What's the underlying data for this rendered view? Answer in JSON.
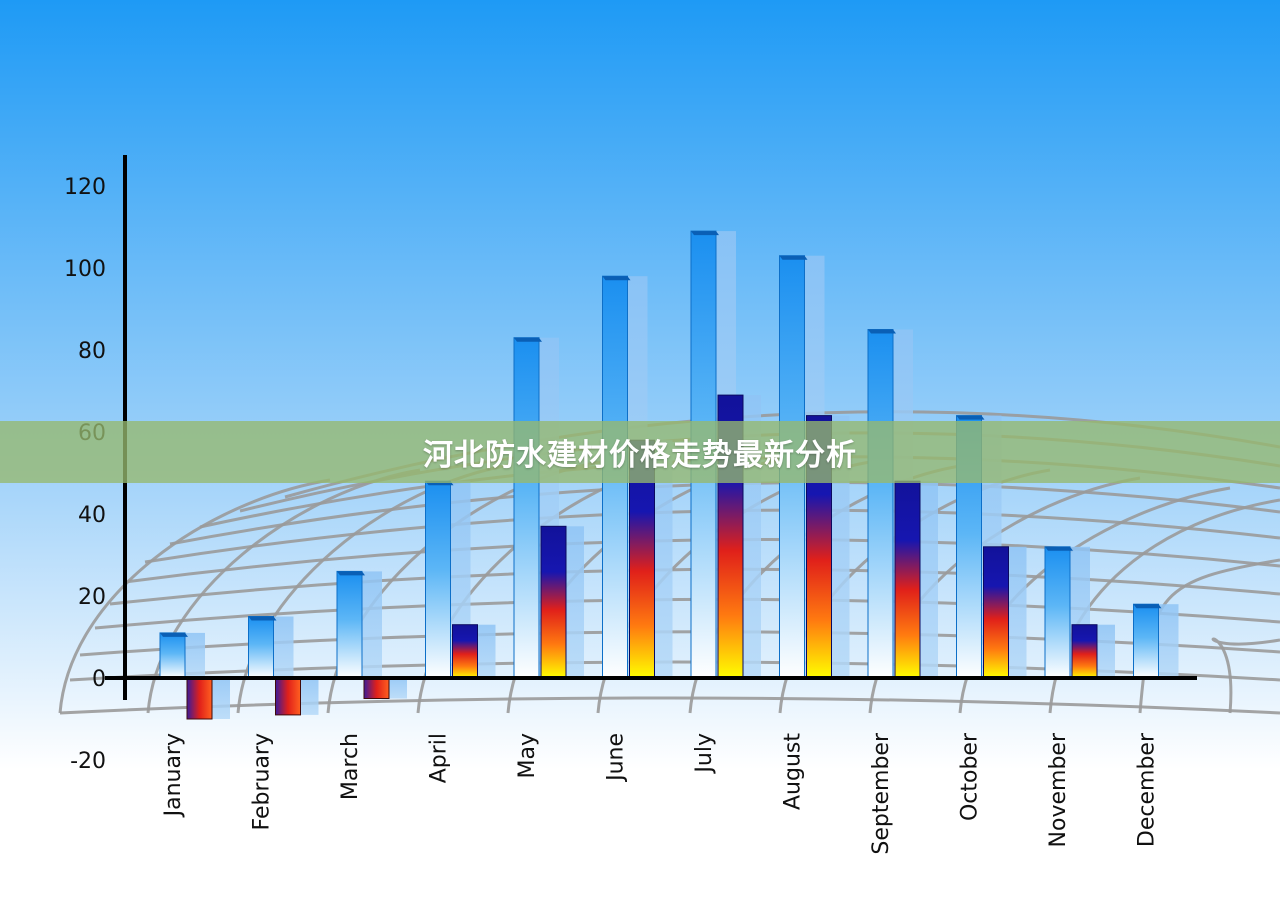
{
  "banner": {
    "title": "河北防水建材价格走势最新分析"
  },
  "chart_data": {
    "type": "bar",
    "categories": [
      "January",
      "February",
      "March",
      "April",
      "May",
      "June",
      "July",
      "August",
      "September",
      "October",
      "November",
      "December"
    ],
    "series": [
      {
        "values": [
          11,
          15,
          26,
          48,
          83,
          98,
          109,
          103,
          85,
          64,
          32,
          18
        ]
      },
      {
        "values": [
          -10,
          -9,
          -5,
          13,
          37,
          58,
          69,
          64,
          48,
          32,
          13,
          null
        ]
      }
    ],
    "yticks": [
      120,
      100,
      80,
      60,
      40,
      20,
      0,
      -20
    ],
    "ylim": [
      -20,
      120
    ],
    "grid": "perspective",
    "colors": {
      "sky_top": "#1e9af5",
      "sky_bottom": "#ffffff",
      "bar_blue": "#1a8ff0",
      "bar_dark": "#12129a",
      "bar_red": "#ee2a14",
      "bar_yellow": "#ffff00",
      "axis": "#000000"
    }
  }
}
